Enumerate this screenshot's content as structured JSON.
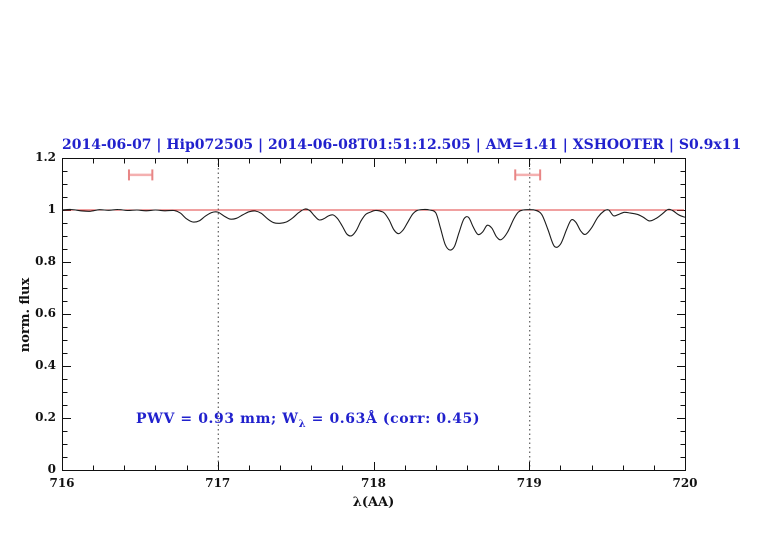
{
  "figure": {
    "title": "2014-06-07 | Hip072505 | 2014-06-08T01:51:12.505 | AM=1.41 | XSHOOTER | S0.9x11",
    "title_color": "#2121cd"
  },
  "axes": {
    "xlabel": "λ(AA)",
    "ylabel": "norm. flux",
    "x_ticks": [
      "716",
      "717",
      "718",
      "719",
      "720"
    ],
    "y_ticks": [
      "0",
      "0.2",
      "0.4",
      "0.6",
      "0.8",
      "1",
      "1.2"
    ]
  },
  "annotation": {
    "prefix": "PWV = 0.93 mm; W",
    "subscript": "λ",
    "suffix": " = 0.63Å (corr: 0.45)",
    "color": "#2121cd"
  },
  "chart_data": {
    "type": "line",
    "title": "2014-06-07 | Hip072505 | 2014-06-08T01:51:12.505 | AM=1.41 | XSHOOTER | S0.9x11",
    "xlabel": "λ(AA)",
    "ylabel": "norm. flux",
    "xlim": [
      716,
      720
    ],
    "ylim": [
      0,
      1.2
    ],
    "x_major_ticks": [
      716,
      717,
      718,
      719,
      720
    ],
    "x_minor_step": 0.2,
    "y_major_ticks": [
      0,
      0.2,
      0.4,
      0.6,
      0.8,
      1.0,
      1.2
    ],
    "y_minor_step": 0.05,
    "legend": "none",
    "grid": "off",
    "dotted_vlines": [
      717,
      719
    ],
    "continuum_level": 1.0,
    "continuum_color": "#e04040",
    "line_color": "#1c1c1c",
    "axis_color": "#111111",
    "vline_color": "#3c3c3c",
    "marker_color": "#f4b0b0",
    "marker_cap_color": "#e88585",
    "range_markers": [
      {
        "x_start": 716.43,
        "x_end": 716.58,
        "y": 1.135
      },
      {
        "x_start": 718.91,
        "x_end": 719.07,
        "y": 1.135
      }
    ],
    "series": [
      {
        "name": "observed-spectrum",
        "points": [
          [
            716.0,
            1.0
          ],
          [
            716.06,
            1.002
          ],
          [
            716.12,
            0.997
          ],
          [
            716.18,
            0.995
          ],
          [
            716.24,
            1.001
          ],
          [
            716.3,
            0.999
          ],
          [
            716.36,
            1.002
          ],
          [
            716.42,
            0.998
          ],
          [
            716.48,
            1.0
          ],
          [
            716.54,
            0.997
          ],
          [
            716.6,
            1.0
          ],
          [
            716.66,
            0.997
          ],
          [
            716.72,
            0.998
          ],
          [
            716.76,
            0.988
          ],
          [
            716.8,
            0.966
          ],
          [
            716.84,
            0.954
          ],
          [
            716.88,
            0.958
          ],
          [
            716.92,
            0.976
          ],
          [
            716.96,
            0.99
          ],
          [
            717.0,
            0.992
          ],
          [
            717.04,
            0.977
          ],
          [
            717.08,
            0.965
          ],
          [
            717.12,
            0.968
          ],
          [
            717.16,
            0.981
          ],
          [
            717.2,
            0.993
          ],
          [
            717.24,
            0.996
          ],
          [
            717.28,
            0.987
          ],
          [
            717.32,
            0.966
          ],
          [
            717.36,
            0.951
          ],
          [
            717.4,
            0.949
          ],
          [
            717.44,
            0.954
          ],
          [
            717.48,
            0.969
          ],
          [
            717.52,
            0.99
          ],
          [
            717.56,
            1.004
          ],
          [
            717.59,
            0.998
          ],
          [
            717.62,
            0.978
          ],
          [
            717.65,
            0.962
          ],
          [
            717.68,
            0.966
          ],
          [
            717.71,
            0.977
          ],
          [
            717.74,
            0.981
          ],
          [
            717.77,
            0.966
          ],
          [
            717.8,
            0.938
          ],
          [
            717.83,
            0.907
          ],
          [
            717.86,
            0.901
          ],
          [
            717.89,
            0.922
          ],
          [
            717.92,
            0.958
          ],
          [
            717.95,
            0.983
          ],
          [
            717.98,
            0.992
          ],
          [
            718.01,
            0.998
          ],
          [
            718.04,
            0.996
          ],
          [
            718.07,
            0.988
          ],
          [
            718.1,
            0.962
          ],
          [
            718.13,
            0.925
          ],
          [
            718.16,
            0.909
          ],
          [
            718.19,
            0.923
          ],
          [
            718.22,
            0.953
          ],
          [
            718.25,
            0.983
          ],
          [
            718.28,
            0.998
          ],
          [
            718.32,
            1.002
          ],
          [
            718.36,
            1.0
          ],
          [
            718.4,
            0.989
          ],
          [
            718.43,
            0.93
          ],
          [
            718.46,
            0.868
          ],
          [
            718.49,
            0.846
          ],
          [
            718.52,
            0.86
          ],
          [
            718.55,
            0.915
          ],
          [
            718.58,
            0.965
          ],
          [
            718.61,
            0.972
          ],
          [
            718.64,
            0.935
          ],
          [
            718.67,
            0.906
          ],
          [
            718.7,
            0.915
          ],
          [
            718.73,
            0.941
          ],
          [
            718.76,
            0.93
          ],
          [
            718.79,
            0.897
          ],
          [
            718.82,
            0.886
          ],
          [
            718.86,
            0.914
          ],
          [
            718.9,
            0.965
          ],
          [
            718.93,
            0.992
          ],
          [
            718.96,
            1.0
          ],
          [
            719.0,
            1.001
          ],
          [
            719.04,
            0.999
          ],
          [
            719.08,
            0.983
          ],
          [
            719.12,
            0.925
          ],
          [
            719.16,
            0.861
          ],
          [
            719.2,
            0.868
          ],
          [
            719.24,
            0.925
          ],
          [
            719.27,
            0.962
          ],
          [
            719.3,
            0.952
          ],
          [
            719.33,
            0.92
          ],
          [
            719.36,
            0.906
          ],
          [
            719.4,
            0.931
          ],
          [
            719.44,
            0.972
          ],
          [
            719.48,
            0.996
          ],
          [
            719.51,
            1.0
          ],
          [
            719.54,
            0.978
          ],
          [
            719.57,
            0.982
          ],
          [
            719.61,
            0.991
          ],
          [
            719.65,
            0.988
          ],
          [
            719.69,
            0.984
          ],
          [
            719.73,
            0.973
          ],
          [
            719.77,
            0.958
          ],
          [
            719.81,
            0.966
          ],
          [
            719.85,
            0.983
          ],
          [
            719.89,
            1.002
          ],
          [
            719.92,
            0.998
          ],
          [
            719.96,
            0.981
          ],
          [
            720.0,
            0.972
          ]
        ]
      }
    ]
  }
}
